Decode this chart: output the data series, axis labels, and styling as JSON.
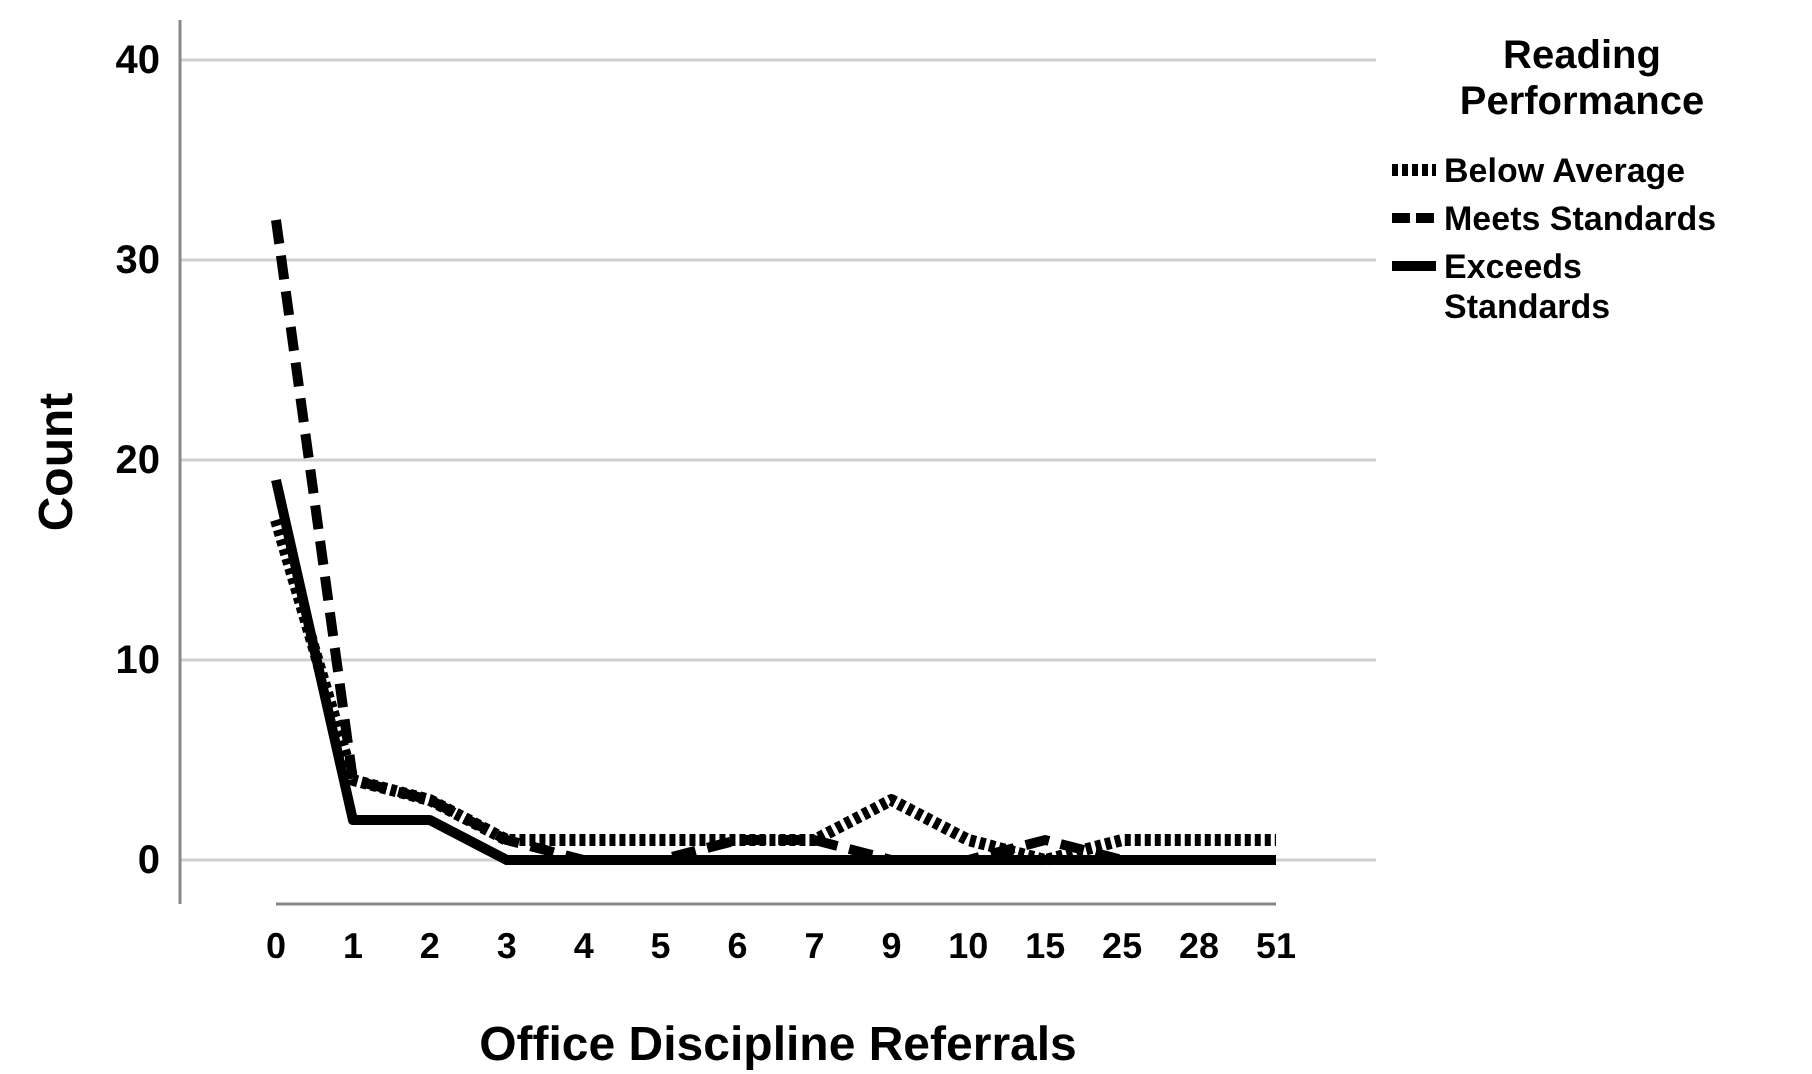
{
  "chart_data": {
    "type": "line",
    "xlabel": "Office Discipline Referrals",
    "ylabel": "Count",
    "legend_title": "Reading Performance",
    "categories": [
      "0",
      "1",
      "2",
      "3",
      "4",
      "5",
      "6",
      "7",
      "9",
      "10",
      "15",
      "25",
      "28",
      "51"
    ],
    "series": [
      {
        "name": "Below Average",
        "color": "#000000",
        "line_style": "dotted",
        "values": [
          17,
          4,
          3,
          1,
          1,
          1,
          1,
          1,
          3,
          1,
          0,
          1,
          1,
          1
        ]
      },
      {
        "name": "Meets Standards",
        "color": "#000000",
        "line_style": "dashed",
        "values": [
          32,
          4,
          3,
          1,
          0,
          0,
          1,
          1,
          0,
          0,
          1,
          0,
          0,
          0
        ]
      },
      {
        "name": "Exceeds Standards",
        "color": "#000000",
        "line_style": "solid",
        "values": [
          19,
          2,
          2,
          0,
          0,
          0,
          0,
          0,
          0,
          0,
          0,
          0,
          0,
          0
        ]
      }
    ],
    "ylim": [
      -2.2,
      42
    ],
    "yticks": [
      0,
      10,
      20,
      30,
      40
    ],
    "grid": "y",
    "legend": "right"
  }
}
